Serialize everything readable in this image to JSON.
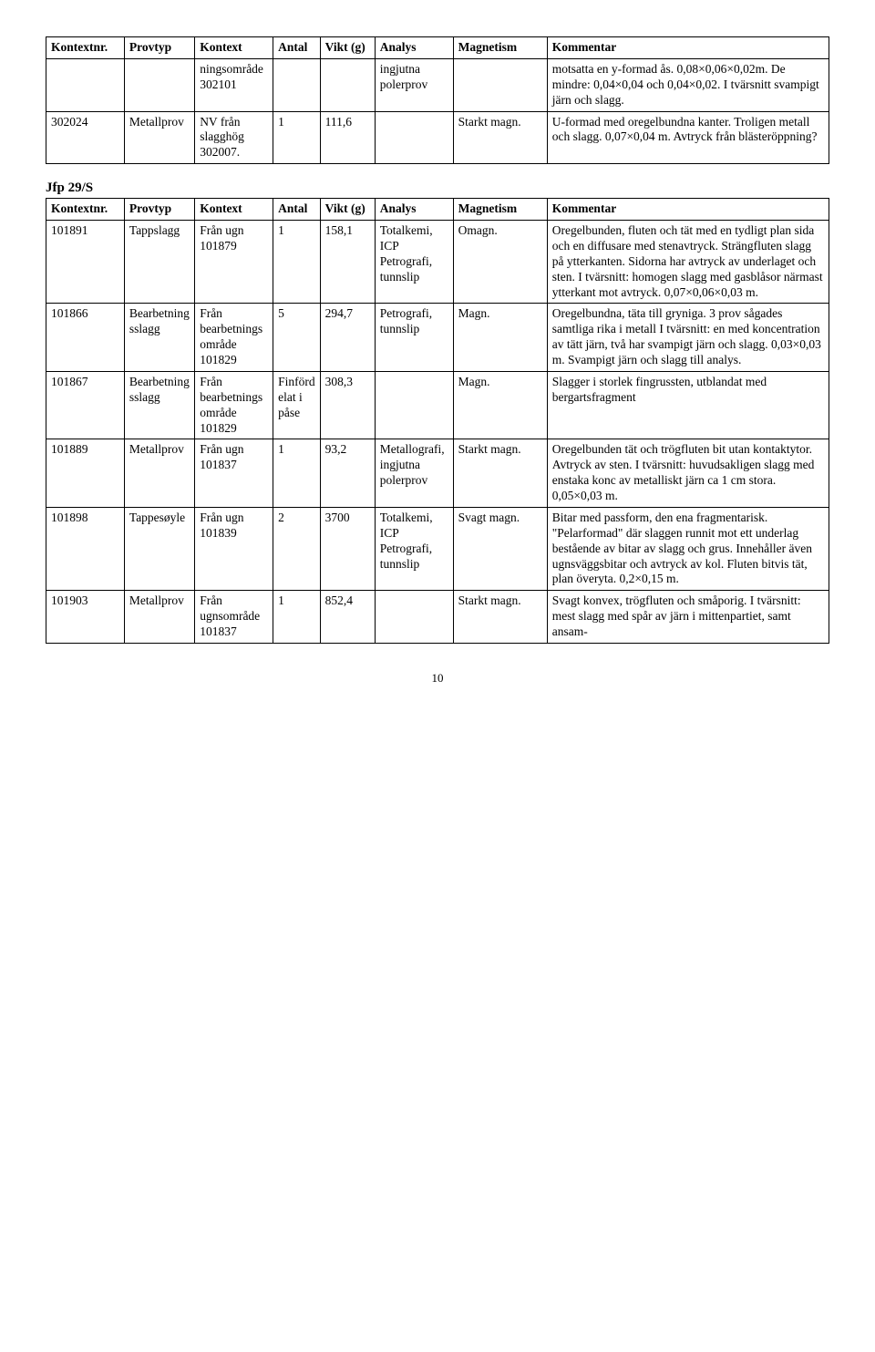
{
  "table1": {
    "headers": [
      "Kontextnr.",
      "Provtyp",
      "Kontext",
      "Antal",
      "Vikt (g)",
      "Analys",
      "Magnetism",
      "Kommentar"
    ],
    "rows": [
      [
        "",
        "",
        "ningsområde 302101",
        "",
        "",
        "ingjutna polerprov",
        "",
        "motsatta en y-formad ås. 0,08×0,06×0,02m. De mindre: 0,04×0,04 och 0,04×0,02. I tvärsnitt svampigt järn och slagg."
      ],
      [
        "302024",
        "Metallprov",
        "NV från slagghög 302007.",
        "1",
        "111,6",
        "",
        "Starkt magn.",
        "U-formad med oregelbundna kanter. Troligen metall och slagg. 0,07×0,04 m. Avtryck från blästeröppning?"
      ]
    ]
  },
  "section2_title": "Jfp 29/S",
  "table2": {
    "headers": [
      "Kontextnr.",
      "Provtyp",
      "Kontext",
      "Antal",
      "Vikt (g)",
      "Analys",
      "Magnetism",
      "Kommentar"
    ],
    "rows": [
      [
        "101891",
        "Tappslagg",
        "Från ugn 101879",
        "1",
        "158,1",
        "Totalkemi, ICP Petrografi, tunnslip",
        "Omagn.",
        "Oregelbunden, fluten och tät med en tydligt plan sida och en diffusare med stenavtryck. Strängfluten slagg på ytterkanten. Sidorna har avtryck av underlaget och sten. I tvärsnitt: homogen slagg med gasblåsor närmast ytterkant mot avtryck. 0,07×0,06×0,03 m."
      ],
      [
        "101866",
        "Bearbetningsslagg",
        "Från bearbetningsområde 101829",
        "5",
        "294,7",
        "Petrografi, tunnslip",
        "Magn.",
        "Oregelbundna, täta till gryniga. 3 prov sågades samtliga rika i metall I tvärsnitt: en med koncentration av tätt järn, två har svampigt järn och slagg. 0,03×0,03 m. Svampigt järn och slagg till analys."
      ],
      [
        "101867",
        "Bearbetningsslagg",
        "Från bearbetningsområde 101829",
        "Finfördelat i påse",
        "308,3",
        "",
        "Magn.",
        "Slagger i storlek fingrussten, utblandat med bergartsfragment"
      ],
      [
        "101889",
        "Metallprov",
        "Från ugn 101837",
        "1",
        "93,2",
        "Metallografi, ingjutna polerprov",
        "Starkt magn.",
        "Oregelbunden tät och trögfluten bit utan kontaktytor. Avtryck av sten. I tvärsnitt: huvudsakligen slagg med enstaka konc av metalliskt järn ca 1 cm stora. 0,05×0,03 m."
      ],
      [
        "101898",
        "Tappesøyle",
        "Från ugn 101839",
        "2",
        "3700",
        "Totalkemi, ICP Petrografi, tunnslip",
        "Svagt magn.",
        "Bitar med passform, den ena fragmentarisk. \"Pelarformad\" där slaggen runnit mot ett underlag bestående av bitar av slagg och grus. Innehåller även ugnsväggsbitar och avtryck av kol. Fluten bitvis tät, plan överyta. 0,2×0,15 m."
      ],
      [
        "101903",
        "Metallprov",
        "Från ugnsområde 101837",
        "1",
        "852,4",
        "",
        "Starkt magn.",
        "Svagt konvex, trögfluten och småporig. I tvärsnitt: mest slagg med spår av järn i mittenpartiet, samt ansam-"
      ]
    ]
  },
  "page_number": "10"
}
